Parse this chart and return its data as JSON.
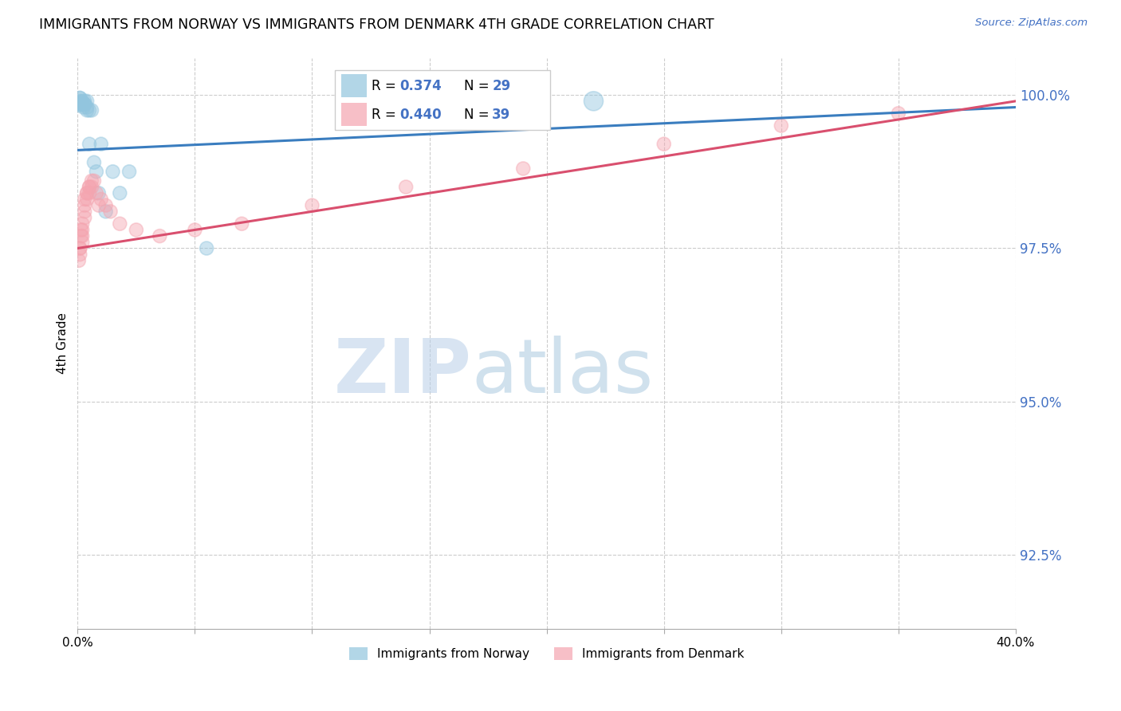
{
  "title": "IMMIGRANTS FROM NORWAY VS IMMIGRANTS FROM DENMARK 4TH GRADE CORRELATION CHART",
  "source": "Source: ZipAtlas.com",
  "ylabel": "4th Grade",
  "yticks": [
    "100.0%",
    "97.5%",
    "95.0%",
    "92.5%"
  ],
  "ytick_vals": [
    1.0,
    0.975,
    0.95,
    0.925
  ],
  "xlim": [
    0.0,
    0.4
  ],
  "ylim": [
    0.913,
    1.006
  ],
  "legend_norway": "Immigrants from Norway",
  "legend_denmark": "Immigrants from Denmark",
  "norway_R": "0.374",
  "norway_N": "29",
  "denmark_R": "0.440",
  "denmark_N": "39",
  "norway_color": "#92c5de",
  "denmark_color": "#f4a5b0",
  "norway_line_color": "#3a7dbf",
  "denmark_line_color": "#d94f6e",
  "norway_scatter_x": [
    0.0005,
    0.001,
    0.001,
    0.001,
    0.0015,
    0.002,
    0.002,
    0.002,
    0.0025,
    0.003,
    0.003,
    0.003,
    0.004,
    0.004,
    0.004,
    0.005,
    0.005,
    0.006,
    0.007,
    0.008,
    0.009,
    0.01,
    0.012,
    0.015,
    0.018,
    0.022,
    0.055,
    0.13,
    0.22
  ],
  "norway_scatter_y": [
    0.9985,
    0.9995,
    0.9995,
    0.999,
    0.9985,
    0.999,
    0.9985,
    0.9985,
    0.998,
    0.999,
    0.9985,
    0.9985,
    0.999,
    0.998,
    0.9975,
    0.9975,
    0.992,
    0.9975,
    0.989,
    0.9875,
    0.984,
    0.992,
    0.981,
    0.9875,
    0.984,
    0.9875,
    0.975,
    0.999,
    0.999
  ],
  "norway_scatter_size": [
    200,
    150,
    150,
    150,
    150,
    150,
    150,
    150,
    150,
    150,
    150,
    150,
    150,
    150,
    150,
    150,
    150,
    150,
    150,
    150,
    150,
    150,
    150,
    150,
    150,
    150,
    150,
    300,
    300
  ],
  "denmark_scatter_x": [
    0.0005,
    0.001,
    0.001,
    0.001,
    0.0015,
    0.0015,
    0.002,
    0.002,
    0.002,
    0.002,
    0.003,
    0.003,
    0.003,
    0.003,
    0.004,
    0.004,
    0.004,
    0.005,
    0.005,
    0.005,
    0.006,
    0.006,
    0.007,
    0.008,
    0.009,
    0.01,
    0.012,
    0.014,
    0.018,
    0.025,
    0.035,
    0.05,
    0.07,
    0.1,
    0.14,
    0.19,
    0.25,
    0.3,
    0.35
  ],
  "denmark_scatter_y": [
    0.973,
    0.975,
    0.974,
    0.975,
    0.977,
    0.978,
    0.979,
    0.977,
    0.978,
    0.976,
    0.981,
    0.982,
    0.98,
    0.983,
    0.984,
    0.984,
    0.983,
    0.985,
    0.984,
    0.985,
    0.985,
    0.986,
    0.986,
    0.984,
    0.982,
    0.983,
    0.982,
    0.981,
    0.979,
    0.978,
    0.977,
    0.978,
    0.979,
    0.982,
    0.985,
    0.988,
    0.992,
    0.995,
    0.997
  ],
  "denmark_scatter_size": [
    150,
    150,
    150,
    150,
    150,
    150,
    150,
    150,
    150,
    150,
    150,
    150,
    150,
    150,
    150,
    150,
    150,
    150,
    150,
    150,
    150,
    150,
    150,
    150,
    150,
    150,
    150,
    150,
    150,
    150,
    150,
    150,
    150,
    150,
    150,
    150,
    150,
    150,
    150
  ],
  "watermark_zip": "ZIP",
  "watermark_atlas": "atlas",
  "background_color": "#ffffff",
  "grid_color": "#cccccc"
}
